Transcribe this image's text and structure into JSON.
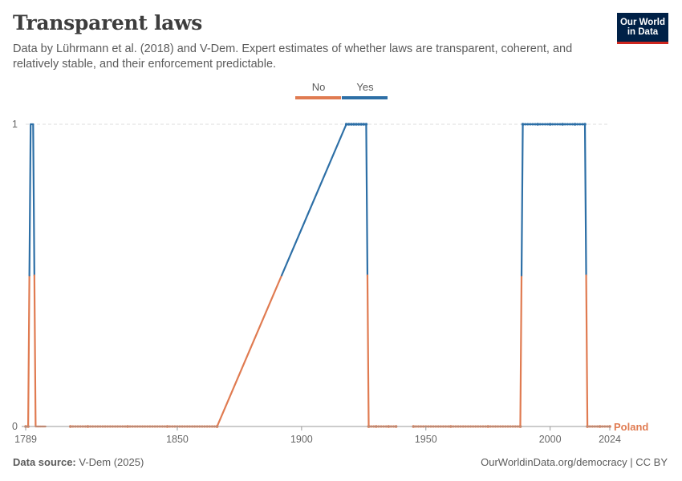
{
  "header": {
    "title": "Transparent laws",
    "subtitle": "Data by Lührmann et al. (2018) and V-Dem. Expert estimates of whether laws are transparent, coherent, and relatively stable, and their enforcement predictable."
  },
  "logo": {
    "line1": "Our World",
    "line2": "in Data"
  },
  "footer": {
    "source_label": "Data source:",
    "source_value": "V-Dem (2025)",
    "link": "OurWorldinData.org/democracy | CC BY"
  },
  "colors": {
    "no": "#e07b51",
    "yes": "#2d6fa6",
    "grid": "#dddddd",
    "axis": "#999999"
  },
  "chart_data": {
    "type": "line",
    "entity": "Poland",
    "x_ticks": [
      1789,
      1850,
      1900,
      1950,
      2000,
      2024
    ],
    "y_ticks": [
      0,
      1
    ],
    "xlim": [
      1789,
      2024
    ],
    "ylim": [
      0,
      1
    ],
    "legend": {
      "position": "top-center",
      "items": [
        {
          "label": "No",
          "color": "#e07b51"
        },
        {
          "label": "Yes",
          "color": "#2d6fa6"
        }
      ]
    },
    "segments": [
      {
        "x": [
          1789,
          1790
        ],
        "y": [
          0,
          0
        ],
        "markers": true
      },
      {
        "x": [
          1790,
          1791,
          1792,
          1793
        ],
        "y": [
          0,
          1,
          1,
          0
        ]
      },
      {
        "x": [
          1793,
          1794,
          1795,
          1796,
          1797
        ],
        "y": [
          0,
          0,
          0,
          0,
          0
        ]
      },
      {
        "x": [
          1807,
          1814,
          1830,
          1846,
          1866
        ],
        "y": [
          0,
          0,
          0,
          0,
          0
        ],
        "markers": true
      },
      {
        "x": [
          1866,
          1918,
          1919,
          1920,
          1921,
          1922,
          1923,
          1924,
          1925,
          1926,
          1927
        ],
        "y": [
          0,
          1,
          1,
          1,
          1,
          1,
          1,
          1,
          1,
          1,
          0
        ],
        "markers": true
      },
      {
        "x": [
          1927,
          1930,
          1935,
          1938
        ],
        "y": [
          0,
          0,
          0,
          0
        ],
        "markers": true
      },
      {
        "x": [
          1945,
          1960,
          1975,
          1988
        ],
        "y": [
          0,
          0,
          0,
          0
        ],
        "markers": true
      },
      {
        "x": [
          1988,
          1989,
          1995,
          2000,
          2005,
          2010,
          2014,
          2015
        ],
        "y": [
          0,
          1,
          1,
          1,
          1,
          1,
          1,
          0
        ],
        "markers": true
      },
      {
        "x": [
          2015,
          2020,
          2024
        ],
        "y": [
          0,
          0,
          0
        ],
        "markers": true
      }
    ]
  }
}
